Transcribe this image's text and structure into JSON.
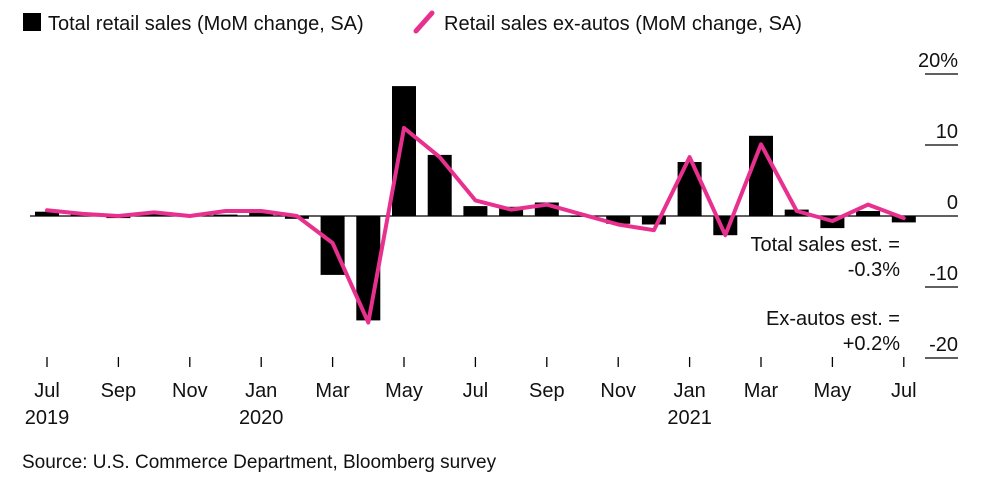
{
  "chart_data": {
    "type": "bar+line",
    "legend": [
      {
        "label": "Total retail sales (MoM change, SA)",
        "color": "#000000",
        "marker": "square"
      },
      {
        "label": "Retail sales ex-autos (MoM change, SA)",
        "color": "#e8308f",
        "marker": "line"
      }
    ],
    "x": [
      "2019-07",
      "2019-08",
      "2019-09",
      "2019-10",
      "2019-11",
      "2019-12",
      "2020-01",
      "2020-02",
      "2020-03",
      "2020-04",
      "2020-05",
      "2020-06",
      "2020-07",
      "2020-08",
      "2020-09",
      "2020-10",
      "2020-11",
      "2020-12",
      "2021-01",
      "2021-02",
      "2021-03",
      "2021-04",
      "2021-05",
      "2021-06",
      "2021-07"
    ],
    "x_tick_labels": [
      {
        "x": "2019-07",
        "label": "Jul",
        "year": "2019"
      },
      {
        "x": "2019-09",
        "label": "Sep",
        "year": ""
      },
      {
        "x": "2019-11",
        "label": "Nov",
        "year": ""
      },
      {
        "x": "2020-01",
        "label": "Jan",
        "year": "2020"
      },
      {
        "x": "2020-03",
        "label": "Mar",
        "year": ""
      },
      {
        "x": "2020-05",
        "label": "May",
        "year": ""
      },
      {
        "x": "2020-07",
        "label": "Jul",
        "year": ""
      },
      {
        "x": "2020-09",
        "label": "Sep",
        "year": ""
      },
      {
        "x": "2020-11",
        "label": "Nov",
        "year": ""
      },
      {
        "x": "2021-01",
        "label": "Jan",
        "year": "2021"
      },
      {
        "x": "2021-03",
        "label": "Mar",
        "year": ""
      },
      {
        "x": "2021-05",
        "label": "May",
        "year": ""
      },
      {
        "x": "2021-07",
        "label": "Jul",
        "year": ""
      }
    ],
    "series": [
      {
        "name": "Total retail sales (MoM change, SA)",
        "type": "bar",
        "color": "#000000",
        "values": [
          0.6,
          0.4,
          -0.3,
          0.3,
          0.2,
          0.2,
          0.6,
          -0.4,
          -8.3,
          -14.7,
          18.3,
          8.6,
          1.4,
          1.3,
          1.9,
          0.0,
          -1.1,
          -1.2,
          7.6,
          -2.7,
          11.3,
          0.9,
          -1.7,
          0.7,
          -0.9
        ]
      },
      {
        "name": "Retail sales ex-autos (MoM change, SA)",
        "type": "line",
        "color": "#e8308f",
        "values": [
          0.8,
          0.3,
          0.0,
          0.5,
          0.0,
          0.7,
          0.7,
          0.0,
          -3.8,
          -15.0,
          12.4,
          8.3,
          2.2,
          0.9,
          1.6,
          0.2,
          -1.2,
          -2.0,
          8.3,
          -2.7,
          10.1,
          0.7,
          -0.7,
          1.6,
          -0.3
        ]
      }
    ],
    "ylim": [
      -20,
      20
    ],
    "y_ticks": [
      {
        "value": 20,
        "label": "20%"
      },
      {
        "value": 10,
        "label": "10"
      },
      {
        "value": 0,
        "label": "0"
      },
      {
        "value": -10,
        "label": "-10"
      },
      {
        "value": -20,
        "label": "-20"
      }
    ],
    "y_axis_position": "right",
    "grid": false,
    "legend_position": "top-left",
    "annotations": [
      {
        "id": "total",
        "lines": [
          "Total sales est. =",
          "-0.3%"
        ]
      },
      {
        "id": "exautos",
        "lines": [
          "Ex-autos est. =",
          "+0.2%"
        ]
      }
    ],
    "source": "Source: U.S. Commerce Department, Bloomberg survey"
  }
}
